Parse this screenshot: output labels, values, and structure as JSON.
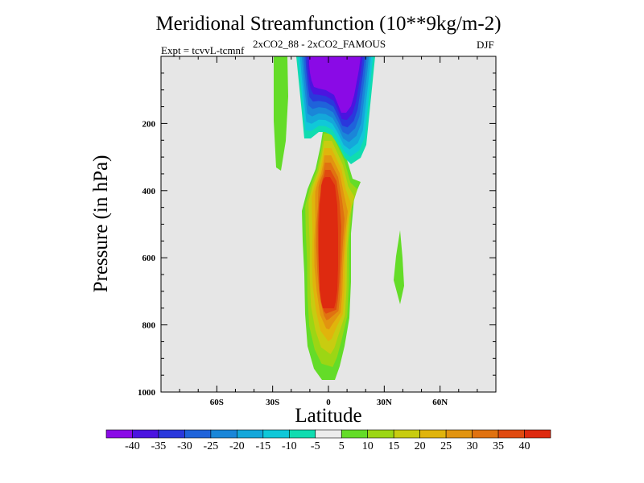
{
  "chart_data": {
    "type": "contour",
    "title": "Meridional Streamfunction (10**9kg/m-2)",
    "left_string": "Expt = tcvvL-tcmnf",
    "center_string": "2xCO2_88 - 2xCO2_FAMOUS",
    "right_string": "DJF",
    "xlabel": "Latitude",
    "ylabel": "Pressure (in hPa)",
    "xlim": [
      -90,
      90
    ],
    "ylim": [
      1000,
      0
    ],
    "x_ticks": [
      {
        "value": -60,
        "label": "60S"
      },
      {
        "value": -30,
        "label": "30S"
      },
      {
        "value": 0,
        "label": "0"
      },
      {
        "value": 30,
        "label": "30N"
      },
      {
        "value": 60,
        "label": "60N"
      }
    ],
    "y_ticks": [
      200,
      400,
      600,
      800,
      1000
    ],
    "y_tick_labels": [
      "200",
      "400",
      "600",
      "800",
      "1000"
    ],
    "colorbar": {
      "levels": [
        "-40",
        "-35",
        "-30",
        "-25",
        "-20",
        "-15",
        "-10",
        "-5",
        "5",
        "10",
        "15",
        "20",
        "25",
        "30",
        "35",
        "40"
      ],
      "colors": [
        "#8a0ae6",
        "#4b14e0",
        "#2a38dc",
        "#1f63da",
        "#1a86d8",
        "#14a7da",
        "#10c8d8",
        "#10dcb0",
        "#ececec",
        "#64dc28",
        "#9cd614",
        "#c8cc10",
        "#e0b40c",
        "#e29410",
        "#e07210",
        "#e04a10",
        "#de2a10"
      ]
    },
    "features": [
      {
        "name": "positive-core",
        "range": "greater than 40",
        "center_lat": 0,
        "pressure_range": [
          210,
          970
        ]
      },
      {
        "name": "negative-core",
        "range": "less than -40",
        "center_lat": 2,
        "pressure_range": [
          0,
          320
        ]
      },
      {
        "name": "positive-strip-30S",
        "range": "5 to 10",
        "center_lat": -26,
        "pressure_range": [
          0,
          340
        ]
      },
      {
        "name": "positive-blob-38N",
        "range": "5 to 10",
        "center_lat": 37,
        "pressure_range": [
          510,
          740
        ]
      }
    ]
  }
}
